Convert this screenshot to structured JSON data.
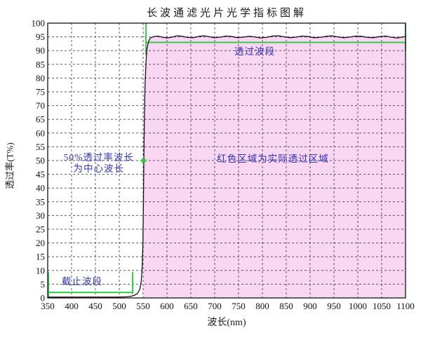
{
  "chart_data": {
    "type": "line",
    "title": "长波通滤光片光学指标图解",
    "xlabel": "波长(nm)",
    "ylabel": "透过率(T%)",
    "xlim": [
      350,
      1100
    ],
    "ylim": [
      0,
      100
    ],
    "xticks": [
      350,
      400,
      450,
      500,
      550,
      600,
      650,
      700,
      750,
      800,
      850,
      900,
      950,
      1000,
      1050,
      1100
    ],
    "yticks": [
      0,
      5,
      10,
      15,
      20,
      25,
      30,
      35,
      40,
      45,
      50,
      55,
      60,
      65,
      70,
      75,
      80,
      85,
      90,
      95,
      100
    ],
    "grid": "dashed",
    "legend": "none",
    "colors": {
      "pass_region_fill": "#F9D6F2",
      "bracket_green": "#33CC44",
      "annotation_blue": "#3333BB",
      "curve": "#1C0B20",
      "grid": "#3F3F3F",
      "axis": "#222222"
    },
    "series": [
      {
        "name": "transmittance-curve",
        "points": [
          [
            350,
            0.3
          ],
          [
            400,
            0.3
          ],
          [
            450,
            0.3
          ],
          [
            500,
            0.3
          ],
          [
            515,
            0.4
          ],
          [
            525,
            0.6
          ],
          [
            532,
            1.0
          ],
          [
            538,
            1.6
          ],
          [
            543,
            3
          ],
          [
            546,
            6
          ],
          [
            548,
            11
          ],
          [
            549.5,
            20
          ],
          [
            550.5,
            32
          ],
          [
            551.5,
            50
          ],
          [
            552.5,
            64
          ],
          [
            554,
            77
          ],
          [
            556,
            86
          ],
          [
            558,
            90.5
          ],
          [
            561,
            93.2
          ],
          [
            565,
            94.6
          ],
          [
            572,
            95.1
          ],
          [
            580,
            95.3
          ],
          [
            590,
            94.9
          ],
          [
            600,
            94.6
          ],
          [
            610,
            94.9
          ],
          [
            622,
            95.4
          ],
          [
            632,
            95.2
          ],
          [
            642,
            94.8
          ],
          [
            655,
            94.7
          ],
          [
            668,
            95.2
          ],
          [
            678,
            95.4
          ],
          [
            690,
            95.0
          ],
          [
            700,
            94.7
          ],
          [
            712,
            94.9
          ],
          [
            724,
            95.3
          ],
          [
            736,
            95.1
          ],
          [
            748,
            94.7
          ],
          [
            760,
            94.9
          ],
          [
            772,
            95.2
          ],
          [
            784,
            95.0
          ],
          [
            796,
            94.6
          ],
          [
            808,
            94.8
          ],
          [
            822,
            95.3
          ],
          [
            834,
            95.4
          ],
          [
            846,
            95.0
          ],
          [
            858,
            94.7
          ],
          [
            870,
            94.9
          ],
          [
            884,
            95.3
          ],
          [
            896,
            95.1
          ],
          [
            908,
            94.7
          ],
          [
            920,
            94.8
          ],
          [
            934,
            95.2
          ],
          [
            946,
            95.4
          ],
          [
            958,
            95.0
          ],
          [
            970,
            94.7
          ],
          [
            982,
            94.9
          ],
          [
            996,
            95.3
          ],
          [
            1008,
            95.2
          ],
          [
            1020,
            94.8
          ],
          [
            1032,
            94.7
          ],
          [
            1046,
            95.1
          ],
          [
            1058,
            95.3
          ],
          [
            1070,
            94.9
          ],
          [
            1082,
            94.6
          ],
          [
            1092,
            94.9
          ],
          [
            1100,
            95.1
          ]
        ]
      }
    ],
    "pass_region_start_nm": 549.5,
    "annotations": [
      {
        "id": "pass-band-label",
        "text": "透过波段",
        "x": 784,
        "y": 89.5
      },
      {
        "id": "center-wavelength-label",
        "text": "50%透过率波长\n为中心波长",
        "x": 457,
        "y": 49
      },
      {
        "id": "red-region-label",
        "text": "红色区域为实际透过区域",
        "x": 822,
        "y": 50.5
      },
      {
        "id": "cutoff-band-label",
        "text": "截止波段",
        "x": 422,
        "y": 5.8
      }
    ],
    "markers": [
      {
        "id": "half-transmittance-point",
        "x": 551,
        "y": 50
      }
    ],
    "brackets": {
      "pass_band": {
        "left_x": 556,
        "left_v": [
          100,
          88.5
        ],
        "line_y": 93,
        "right_x": 1100,
        "right_v": [
          100,
          89.8
        ]
      },
      "cutoff_band": {
        "left_x": 351.5,
        "left_v": [
          9.4,
          0.2
        ],
        "line_y": 2,
        "right_x": 528,
        "right_v": [
          9.4,
          1.4
        ]
      }
    }
  }
}
